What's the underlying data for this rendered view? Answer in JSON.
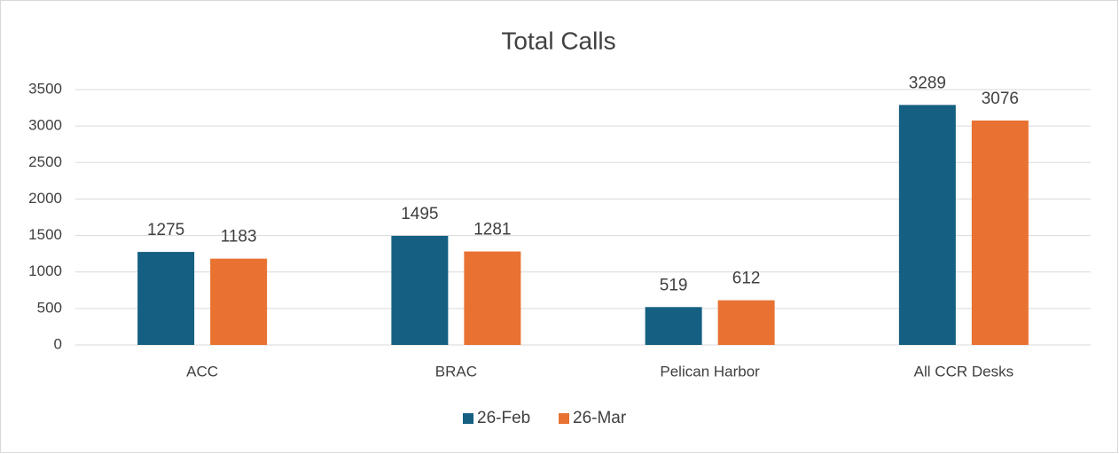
{
  "chart_data": {
    "type": "bar",
    "title": "Total Calls",
    "categories": [
      "ACC",
      "BRAC",
      "Pelican Harbor",
      "All CCR Desks"
    ],
    "series": [
      {
        "name": "26-Feb",
        "color": "#156082",
        "values": [
          1275,
          1495,
          519,
          3289
        ]
      },
      {
        "name": "26-Mar",
        "color": "#e97132",
        "values": [
          1183,
          1281,
          612,
          3076
        ]
      }
    ],
    "ylim": [
      0,
      3500
    ],
    "yticks": [
      0,
      500,
      1000,
      1500,
      2000,
      2500,
      3000,
      3500
    ],
    "grid": true,
    "legend": "bottom"
  }
}
